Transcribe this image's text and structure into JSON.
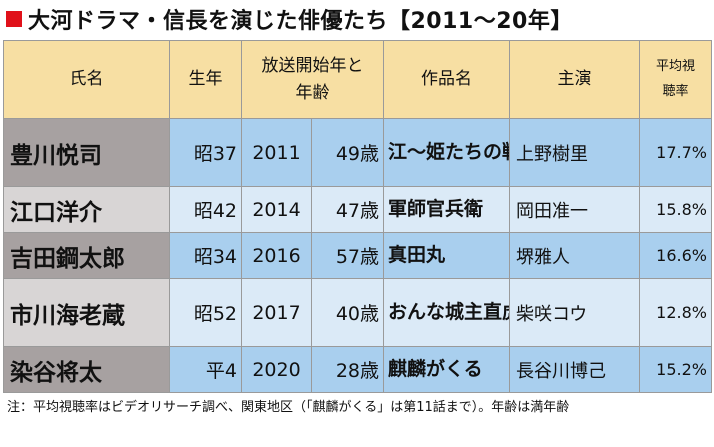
{
  "title": "大河ドラマ・信長を演じた俳優たち【2011～20年】",
  "header": {
    "name": "氏名",
    "birth": "生年",
    "broadcast_line1": "放送開始年と",
    "broadcast_line2": "年齢",
    "work": "作品名",
    "lead": "主演",
    "rating_line1": "平均視",
    "rating_line2": "聴率"
  },
  "rows": [
    {
      "name": "豊川悦司",
      "era": "昭37",
      "year": "2011",
      "age": "49歳",
      "work": "江～姫たちの戦国～",
      "lead": "上野樹里",
      "rating": "17.7%"
    },
    {
      "name": "江口洋介",
      "era": "昭42",
      "year": "2014",
      "age": "47歳",
      "work": "軍師官兵衛",
      "lead": "岡田准一",
      "rating": "15.8%"
    },
    {
      "name": "吉田鋼太郎",
      "era": "昭34",
      "year": "2016",
      "age": "57歳",
      "work": "真田丸",
      "lead": "堺雅人",
      "rating": "16.6%"
    },
    {
      "name": "市川海老蔵",
      "era": "昭52",
      "year": "2017",
      "age": "40歳",
      "work": "おんな城主直虎",
      "lead": "柴咲コウ",
      "rating": "12.8%"
    },
    {
      "name": "染谷将太",
      "era": "平4",
      "year": "2020",
      "age": "28歳",
      "work": "麒麟がくる",
      "lead": "長谷川博己",
      "rating": "15.2%"
    }
  ],
  "note": "注：平均視聴率はビデオリサーチ調べ、関東地区（「麒麟がくる」は第11話まで）。年齢は満年齢",
  "colors": {
    "accent": "#e0111a",
    "header_bg": "#f7dfa3",
    "name_dark": "#a7a1a1",
    "name_light": "#d8d5d5",
    "cell_dark": "#a9cfee",
    "cell_light": "#dbeaf7"
  }
}
